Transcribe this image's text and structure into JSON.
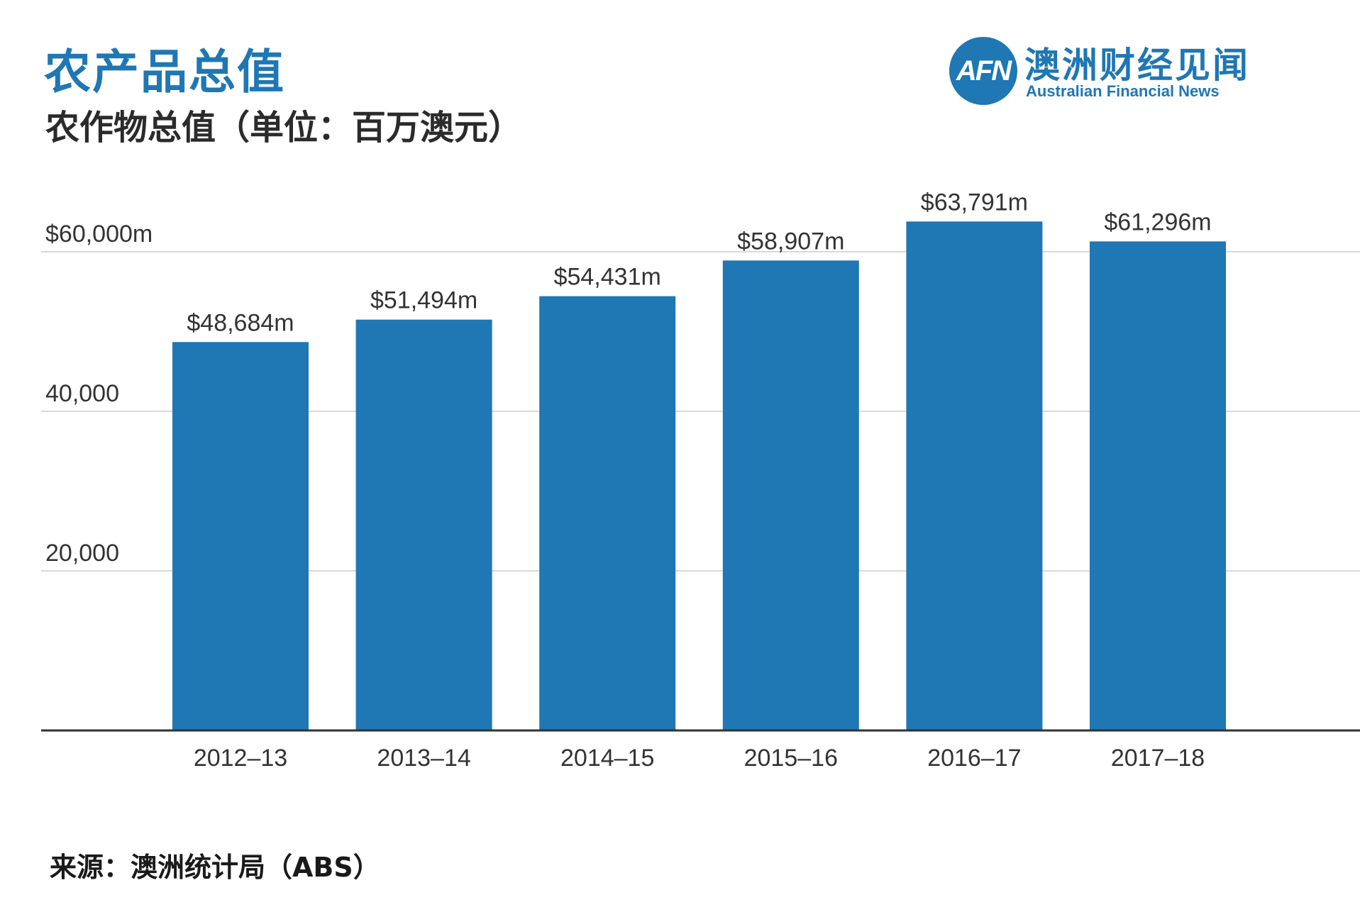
{
  "header": {
    "title": "农产品总值",
    "subtitle": "农作物总值（单位：百万澳元）"
  },
  "logo": {
    "mark": "AFN",
    "name_cn": "澳洲财经见闻",
    "name_en": "Australian Financial News"
  },
  "source": "来源：澳洲统计局（ABS）",
  "colors": {
    "bar": "#1f77b4",
    "accent": "#1f77b4"
  },
  "chart_data": {
    "type": "bar",
    "categories": [
      "2012–13",
      "2013–14",
      "2014–15",
      "2015–16",
      "2016–17",
      "2017–18"
    ],
    "values": [
      48684,
      51494,
      54431,
      58907,
      63791,
      61296
    ],
    "data_labels": [
      "$48,684m",
      "$51,494m",
      "$54,431m",
      "$58,907m",
      "$63,791m",
      "$61,296m"
    ],
    "y_ticks": [
      20000,
      40000,
      60000
    ],
    "y_tick_labels": [
      "20,000",
      "40,000",
      "$60,000m"
    ],
    "ylim": [
      0,
      60000
    ],
    "grid": true,
    "legend": "none"
  }
}
